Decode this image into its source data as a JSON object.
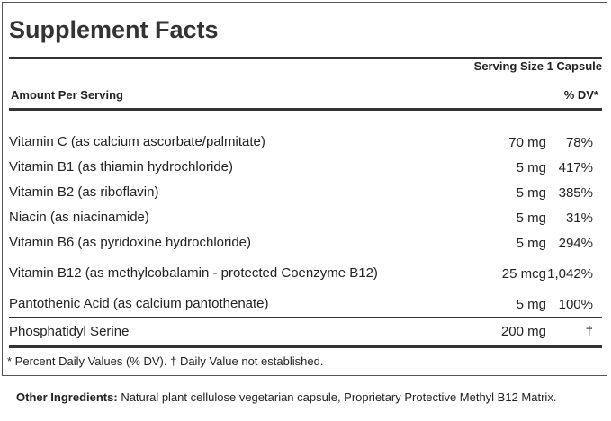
{
  "title": "Supplement Facts",
  "serving_size": "Serving Size 1 Capsule",
  "header": {
    "amount": "Amount Per Serving",
    "dv": "% DV*"
  },
  "rows": [
    [
      "Vitamin C (as calcium ascorbate/palmitate)",
      "70 mg",
      "78%"
    ],
    [
      "Vitamin B1 (as thiamin hydrochloride)",
      "5 mg",
      "417%"
    ],
    [
      "Vitamin B2 (as riboflavin)",
      "5 mg",
      "385%"
    ],
    [
      "Niacin (as niacinamide)",
      "5 mg",
      "31%"
    ],
    [
      "Vitamin B6 (as pyridoxine hydrochloride)",
      "5 mg",
      "294%"
    ],
    [
      "Vitamin B12 (as methylcobalamin - protected Coenzyme B12)",
      "25 mcg",
      "1,042%"
    ],
    [
      "Pantothenic Acid (as calcium pantothenate)",
      "5 mg",
      "100%"
    ]
  ],
  "extra_rows": [
    [
      "Phosphatidyl Serine",
      "200 mg",
      "†"
    ]
  ],
  "footnote": "* Percent Daily Values (% DV). † Daily Value not established.",
  "other_ingredients": {
    "label": "Other Ingredients:",
    "text": "Natural plant cellulose vegetarian capsule, Proprietary Protective Methyl B12 Matrix."
  }
}
